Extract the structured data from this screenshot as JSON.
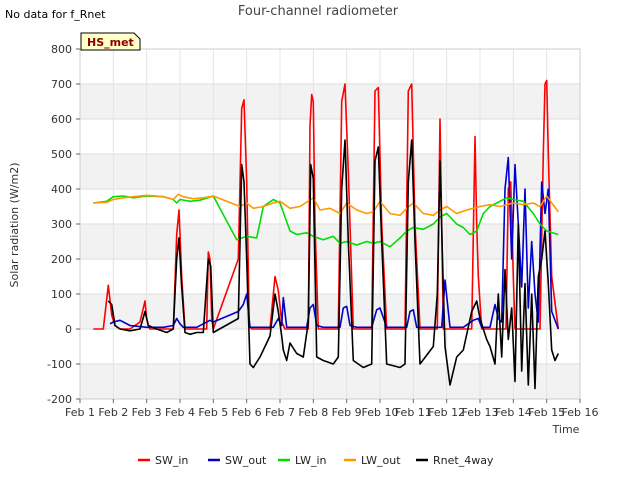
{
  "chart_data": {
    "type": "line",
    "title": "Four-channel radiometer",
    "note": "No data for f_Rnet",
    "badge": "HS_met",
    "xlabel": "Time",
    "ylabel": "Solar radiation (W/m2)",
    "xlim": [
      1,
      16
    ],
    "ylim": [
      -200,
      800
    ],
    "yticks": [
      -200,
      -100,
      0,
      100,
      200,
      300,
      400,
      500,
      600,
      700,
      800
    ],
    "xticks": [
      1,
      2,
      3,
      4,
      5,
      6,
      7,
      8,
      9,
      10,
      11,
      12,
      13,
      14,
      15,
      16
    ],
    "xtick_labels": [
      "Feb 1",
      "Feb 2",
      "Feb 3",
      "Feb 4",
      "Feb 5",
      "Feb 6",
      "Feb 7",
      "Feb 8",
      "Feb 9",
      "Feb 10",
      "Feb 11",
      "Feb 12",
      "Feb 13",
      "Feb 14",
      "Feb 15",
      "Feb 16"
    ],
    "grid": true,
    "legend_position": "bottom",
    "series": [
      {
        "name": "SW_in",
        "color": "#ff0000",
        "x": [
          1.4,
          1.7,
          1.85,
          1.95,
          2.05,
          2.2,
          2.5,
          2.8,
          2.95,
          3.0,
          3.05,
          3.1,
          3.3,
          3.6,
          3.8,
          3.9,
          3.97,
          4.05,
          4.15,
          4.3,
          4.6,
          4.8,
          4.85,
          4.9,
          4.95,
          5.0,
          5.75,
          5.85,
          5.92,
          6.0,
          6.08,
          6.15,
          6.25,
          6.4,
          6.7,
          6.85,
          6.95,
          7.05,
          7.15,
          7.3,
          7.5,
          7.7,
          7.85,
          7.9,
          7.95,
          8.0,
          8.05,
          8.15,
          8.3,
          8.6,
          8.75,
          8.85,
          8.95,
          9.05,
          9.2,
          9.5,
          9.75,
          9.85,
          9.95,
          10.05,
          10.2,
          10.6,
          10.75,
          10.85,
          10.95,
          11.05,
          11.2,
          11.5,
          11.72,
          11.8,
          11.85,
          11.9,
          11.97,
          12.1,
          12.5,
          12.75,
          12.85,
          12.9,
          12.95,
          13.05,
          13.2,
          13.5,
          13.78,
          13.85,
          13.92,
          14.0,
          14.05,
          14.15,
          14.4,
          14.6,
          14.8,
          14.9,
          14.95,
          15.0,
          15.05,
          15.15,
          15.35
        ],
        "values": [
          0,
          0,
          125,
          40,
          10,
          0,
          0,
          20,
          80,
          30,
          10,
          0,
          0,
          0,
          0,
          270,
          340,
          150,
          0,
          0,
          0,
          0,
          220,
          200,
          30,
          0,
          200,
          630,
          655,
          420,
          10,
          0,
          0,
          0,
          0,
          150,
          110,
          20,
          0,
          0,
          0,
          0,
          0,
          580,
          670,
          650,
          300,
          0,
          0,
          0,
          0,
          650,
          700,
          450,
          0,
          0,
          0,
          680,
          690,
          300,
          0,
          0,
          0,
          680,
          700,
          300,
          0,
          0,
          0,
          600,
          300,
          0,
          0,
          0,
          0,
          0,
          550,
          300,
          150,
          0,
          0,
          0,
          0,
          400,
          420,
          150,
          0,
          0,
          0,
          0,
          0,
          500,
          700,
          710,
          500,
          150,
          0
        ]
      },
      {
        "name": "SW_out",
        "color": "#0000cc",
        "x": [
          1.9,
          2.0,
          2.2,
          2.5,
          3.0,
          3.5,
          3.8,
          3.9,
          4.0,
          4.1,
          4.5,
          4.9,
          5.0,
          5.75,
          5.9,
          6.0,
          6.1,
          6.5,
          6.8,
          6.95,
          7.05,
          7.1,
          7.2,
          7.8,
          7.9,
          8.0,
          8.1,
          8.3,
          8.8,
          8.9,
          9.0,
          9.1,
          9.3,
          9.75,
          9.9,
          10.0,
          10.2,
          10.8,
          10.9,
          11.0,
          11.1,
          11.5,
          11.85,
          11.95,
          12.1,
          12.5,
          12.8,
          12.95,
          13.05,
          13.3,
          13.45,
          13.55,
          13.65,
          13.75,
          13.85,
          13.95,
          14.05,
          14.15,
          14.25,
          14.35,
          14.45,
          14.55,
          14.65,
          14.75,
          14.85,
          14.95,
          15.05,
          15.15,
          15.35
        ],
        "values": [
          15,
          20,
          25,
          10,
          5,
          5,
          10,
          30,
          15,
          5,
          5,
          25,
          20,
          50,
          70,
          100,
          5,
          5,
          5,
          30,
          10,
          90,
          5,
          5,
          60,
          70,
          10,
          5,
          5,
          60,
          65,
          10,
          5,
          5,
          55,
          60,
          5,
          5,
          50,
          55,
          5,
          5,
          5,
          140,
          5,
          5,
          25,
          30,
          5,
          5,
          70,
          30,
          20,
          400,
          490,
          200,
          470,
          300,
          120,
          400,
          60,
          250,
          100,
          20,
          420,
          330,
          400,
          50,
          0
        ]
      },
      {
        "name": "LW_in",
        "color": "#00dd00",
        "x": [
          1.4,
          1.8,
          2.0,
          2.3,
          2.6,
          3.0,
          3.5,
          3.8,
          3.9,
          4.0,
          4.3,
          4.6,
          5.0,
          5.7,
          6.0,
          6.3,
          6.5,
          6.8,
          7.0,
          7.3,
          7.5,
          7.8,
          8.0,
          8.3,
          8.6,
          8.8,
          9.0,
          9.3,
          9.6,
          9.8,
          10.0,
          10.3,
          10.6,
          10.8,
          11.0,
          11.3,
          11.6,
          11.8,
          12.0,
          12.3,
          12.5,
          12.7,
          12.9,
          13.1,
          13.3,
          13.5,
          13.8,
          14.0,
          14.3,
          14.6,
          14.8,
          15.0,
          15.35
        ],
        "values": [
          360,
          365,
          378,
          380,
          375,
          380,
          378,
          370,
          360,
          370,
          365,
          368,
          380,
          255,
          265,
          260,
          350,
          370,
          360,
          280,
          270,
          275,
          265,
          255,
          265,
          245,
          250,
          240,
          250,
          245,
          250,
          235,
          260,
          280,
          290,
          285,
          300,
          320,
          330,
          300,
          290,
          270,
          280,
          330,
          350,
          360,
          375,
          370,
          365,
          330,
          300,
          280,
          270
        ]
      },
      {
        "name": "LW_out",
        "color": "#ff9900",
        "x": [
          1.4,
          1.8,
          2.0,
          2.3,
          2.6,
          3.0,
          3.5,
          3.8,
          3.95,
          4.1,
          4.4,
          4.7,
          5.0,
          5.8,
          6.0,
          6.2,
          6.5,
          6.8,
          7.0,
          7.3,
          7.6,
          8.0,
          8.2,
          8.5,
          8.8,
          9.0,
          9.3,
          9.6,
          9.8,
          10.0,
          10.3,
          10.6,
          10.8,
          11.0,
          11.3,
          11.6,
          11.8,
          12.0,
          12.3,
          12.6,
          12.8,
          13.0,
          13.3,
          13.6,
          13.8,
          14.0,
          14.3,
          14.6,
          14.8,
          15.0,
          15.35
        ],
        "values": [
          360,
          362,
          370,
          375,
          378,
          382,
          378,
          370,
          385,
          378,
          372,
          375,
          380,
          350,
          360,
          345,
          350,
          360,
          365,
          345,
          350,
          375,
          340,
          345,
          330,
          360,
          340,
          330,
          335,
          365,
          330,
          325,
          345,
          360,
          330,
          325,
          340,
          350,
          330,
          340,
          345,
          350,
          355,
          350,
          355,
          360,
          355,
          360,
          350,
          380,
          335
        ]
      },
      {
        "name": "Rnet_4way",
        "color": "#000000",
        "x": [
          1.85,
          1.95,
          2.05,
          2.2,
          2.5,
          2.8,
          2.95,
          3.05,
          3.3,
          3.6,
          3.8,
          3.9,
          3.97,
          4.05,
          4.15,
          4.3,
          4.5,
          4.7,
          4.85,
          4.92,
          5.0,
          5.75,
          5.85,
          5.92,
          6.0,
          6.1,
          6.2,
          6.4,
          6.7,
          6.85,
          6.95,
          7.05,
          7.1,
          7.2,
          7.3,
          7.5,
          7.7,
          7.85,
          7.92,
          8.0,
          8.1,
          8.3,
          8.6,
          8.75,
          8.85,
          8.95,
          9.05,
          9.2,
          9.5,
          9.75,
          9.85,
          9.95,
          10.05,
          10.2,
          10.6,
          10.75,
          10.85,
          10.95,
          11.05,
          11.2,
          11.6,
          11.72,
          11.8,
          11.87,
          11.95,
          12.1,
          12.3,
          12.5,
          12.75,
          12.9,
          13.0,
          13.1,
          13.2,
          13.3,
          13.45,
          13.55,
          13.65,
          13.75,
          13.85,
          13.95,
          14.05,
          14.15,
          14.25,
          14.35,
          14.45,
          14.55,
          14.65,
          14.75,
          14.85,
          14.95,
          15.05,
          15.15,
          15.25,
          15.35
        ],
        "values": [
          80,
          70,
          10,
          0,
          -5,
          0,
          50,
          10,
          0,
          -10,
          0,
          200,
          260,
          120,
          -10,
          -15,
          -10,
          -10,
          200,
          180,
          -10,
          30,
          470,
          420,
          200,
          -100,
          -110,
          -80,
          -20,
          100,
          50,
          -20,
          -60,
          -90,
          -40,
          -70,
          -80,
          20,
          470,
          430,
          -80,
          -90,
          -100,
          -80,
          400,
          540,
          250,
          -90,
          -110,
          -100,
          480,
          520,
          250,
          -100,
          -110,
          -100,
          420,
          540,
          250,
          -100,
          -50,
          100,
          480,
          220,
          -50,
          -160,
          -80,
          -60,
          50,
          80,
          30,
          0,
          -30,
          -50,
          -100,
          100,
          -80,
          170,
          -30,
          60,
          -150,
          300,
          -120,
          130,
          -160,
          100,
          -170,
          150,
          200,
          280,
          130,
          -60,
          -90,
          -70
        ]
      }
    ]
  }
}
